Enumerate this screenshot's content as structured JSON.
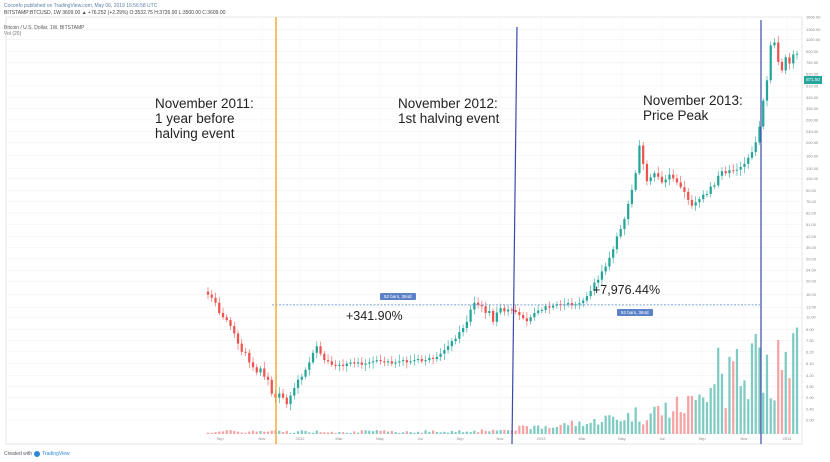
{
  "header": {
    "line1": "Coconfo published on TradingView.com, May 06, 2019 16:56:58 UTC",
    "line2": "BITSTAMP:BTCUSD, 1W  3609.00  ▲  +76.252 (+2.29%)  O:3532.75  H:3726.90  L:3500.00  C:3609.00",
    "line3": "Bitcoin / U.S. Dollar, 1W, BITSTAMP",
    "line4": "Vol (20)"
  },
  "footer": {
    "text": "Created with",
    "brand": "TradingView"
  },
  "annotations": {
    "nov2011": "November 2011:\n1 year before\nhalving event",
    "nov2012": "November 2012:\n1st halving event",
    "nov2013": "November 2013:\nPrice Peak"
  },
  "measurements": {
    "first_pct": "+341.90%",
    "second_pct": "+7,976.44%",
    "first_tag": "52 bars, 364d",
    "second_tag": "52 bars, 364d"
  },
  "price_tag": "871.50",
  "colors": {
    "up": "#26a69a",
    "down": "#ef5350",
    "vol_up": "#7ecbc4",
    "vol_down": "#f5a3a3",
    "orange_line": "#f5a623",
    "blue_line": "#3949ab",
    "dotted_ref": "#7da3d8",
    "grid": "#eeeeee"
  },
  "chart_data": {
    "type": "candlestick",
    "title": "Bitcoin / U.S. Dollar, 1W, BITSTAMP",
    "y_scale": "log",
    "ylim": [
      2.0,
      1600
    ],
    "y_ticks": [
      "1600.00",
      "1300.00",
      "1100.00",
      "900.00",
      "750.00",
      "620.00",
      "510.00",
      "420.00",
      "350.00",
      "290.00",
      "240.00",
      "200.00",
      "160.00",
      "130.00",
      "110.00",
      "90.00",
      "75.00",
      "62.00",
      "51.00",
      "42.00",
      "35.00",
      "29.00",
      "24.00",
      "20.00",
      "16.00",
      "13.00",
      "11.00",
      "9.00",
      "7.50",
      "6.20",
      "5.10",
      "4.20",
      "3.50",
      "2.90",
      "2.40",
      "2.00"
    ],
    "x_ticks": [
      "Sep",
      "Nov",
      "2012",
      "Mar",
      "May",
      "Jul",
      "Sep",
      "Nov",
      "2013",
      "Mar",
      "May",
      "Jul",
      "Sep",
      "Nov",
      "2014"
    ],
    "close": [
      16,
      15.2,
      14,
      11.8,
      11,
      10.5,
      9.5,
      8.4,
      7.1,
      6.2,
      6.1,
      5.2,
      4.8,
      4.4,
      4.7,
      4.1,
      3.9,
      3.1,
      2.9,
      3.1,
      2.9,
      2.6,
      3.0,
      3.4,
      3.9,
      4.1,
      4.6,
      5.2,
      6.1,
      6.8,
      6.0,
      5.4,
      5.3,
      5.0,
      4.9,
      5.0,
      4.9,
      5.1,
      5.2,
      5.1,
      5.2,
      5.0,
      5.1,
      5.2,
      5.3,
      5.4,
      5.3,
      5.2,
      5.3,
      5.1,
      5.2,
      5.3,
      5.4,
      5.2,
      5.3,
      5.4,
      5.5,
      5.3,
      5.4,
      5.6,
      5.5,
      5.7,
      6.0,
      6.4,
      6.8,
      7.4,
      7.7,
      8.6,
      9.2,
      10.2,
      12.5,
      14.0,
      13.5,
      13.2,
      11.8,
      12.2,
      10.2,
      11.9,
      12.8,
      12.1,
      12.5,
      12.4,
      12.0,
      11.4,
      10.8,
      10.3,
      11.0,
      11.8,
      12.3,
      12.4,
      13.2,
      12.9,
      13.3,
      13.7,
      13.4,
      13.6,
      13.9,
      13.4,
      13.6,
      13.9,
      14.5,
      15.6,
      17.0,
      19.5,
      20.5,
      23.5,
      25.5,
      29.5,
      34.0,
      42.0,
      47.5,
      56.0,
      72.0,
      91.0,
      120,
      190,
      140,
      105,
      112,
      120,
      113,
      103,
      108,
      117,
      110,
      103,
      95,
      88,
      77,
      70,
      74,
      78,
      84,
      85,
      96,
      98,
      115,
      124,
      120,
      126,
      125,
      127,
      133,
      140,
      155,
      170,
      200,
      260,
      400,
      560,
      1000,
      1050,
      760,
      660,
      820,
      740,
      860,
      870
    ],
    "volume_units_relative": true
  }
}
